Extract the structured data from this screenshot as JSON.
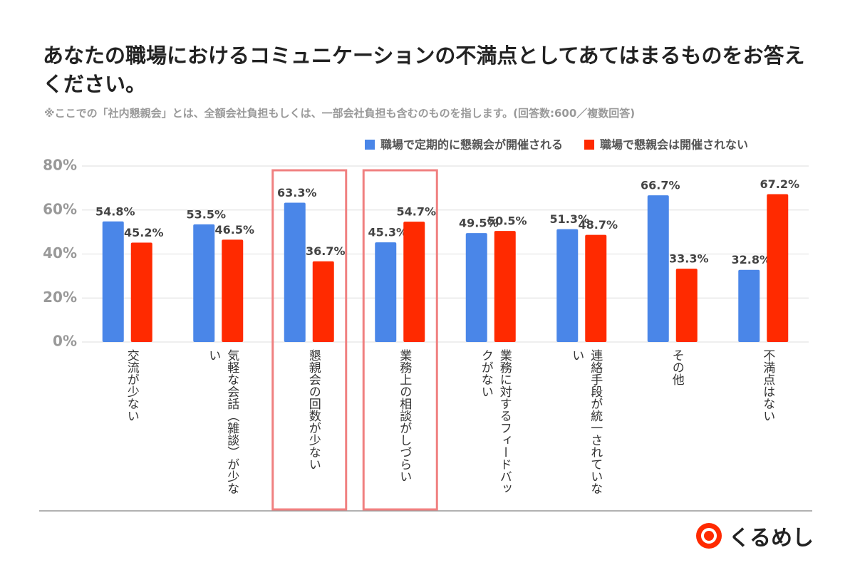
{
  "chart_data": {
    "type": "grouped_bar",
    "title": "あなたの職場におけるコミュニケーションの不満点としてあてはまるものをお答えください。",
    "subtitle": "※ここでの「社内懇親会」とは、全額会社負担もしくは、一部会社負担も含むのものを指します。(回答数:600／複数回答)",
    "categories": [
      "交流が少ない",
      "気軽な会話（雑談）が少ない",
      "懇親会の回数が少ない",
      "業務上の相談がしづらい",
      "業務に対するフィードバックがない",
      "連絡手段が統一されていない",
      "その他",
      "不満点はない"
    ],
    "series": [
      {
        "name": "職場で定期的に懇親会が開催される",
        "color": "#4a86e8",
        "values": [
          54.8,
          53.5,
          63.3,
          45.3,
          49.5,
          51.3,
          66.7,
          32.8
        ],
        "value_labels": [
          "54.8%",
          "53.5%",
          "63.3%",
          "45.3%",
          "49.5%",
          "51.3%",
          "66.7%",
          "32.8%"
        ]
      },
      {
        "name": "職場で懇親会は開催されない",
        "color": "#ff2a00",
        "values": [
          45.2,
          46.5,
          36.7,
          54.7,
          50.5,
          48.7,
          33.3,
          67.2
        ],
        "value_labels": [
          "45.2%",
          "46.5%",
          "36.7%",
          "54.7%",
          "50.5%",
          "48.7%",
          "33.3%",
          "67.2%"
        ]
      }
    ],
    "ylim": [
      0,
      80
    ],
    "yticks": [
      {
        "value": 0,
        "label": "0%"
      },
      {
        "value": 20,
        "label": "20%"
      },
      {
        "value": 40,
        "label": "40%"
      },
      {
        "value": 60,
        "label": "60%"
      },
      {
        "value": 80,
        "label": "80%"
      }
    ],
    "grid": true,
    "highlight": [
      2,
      3
    ],
    "brand": "くるめし"
  }
}
